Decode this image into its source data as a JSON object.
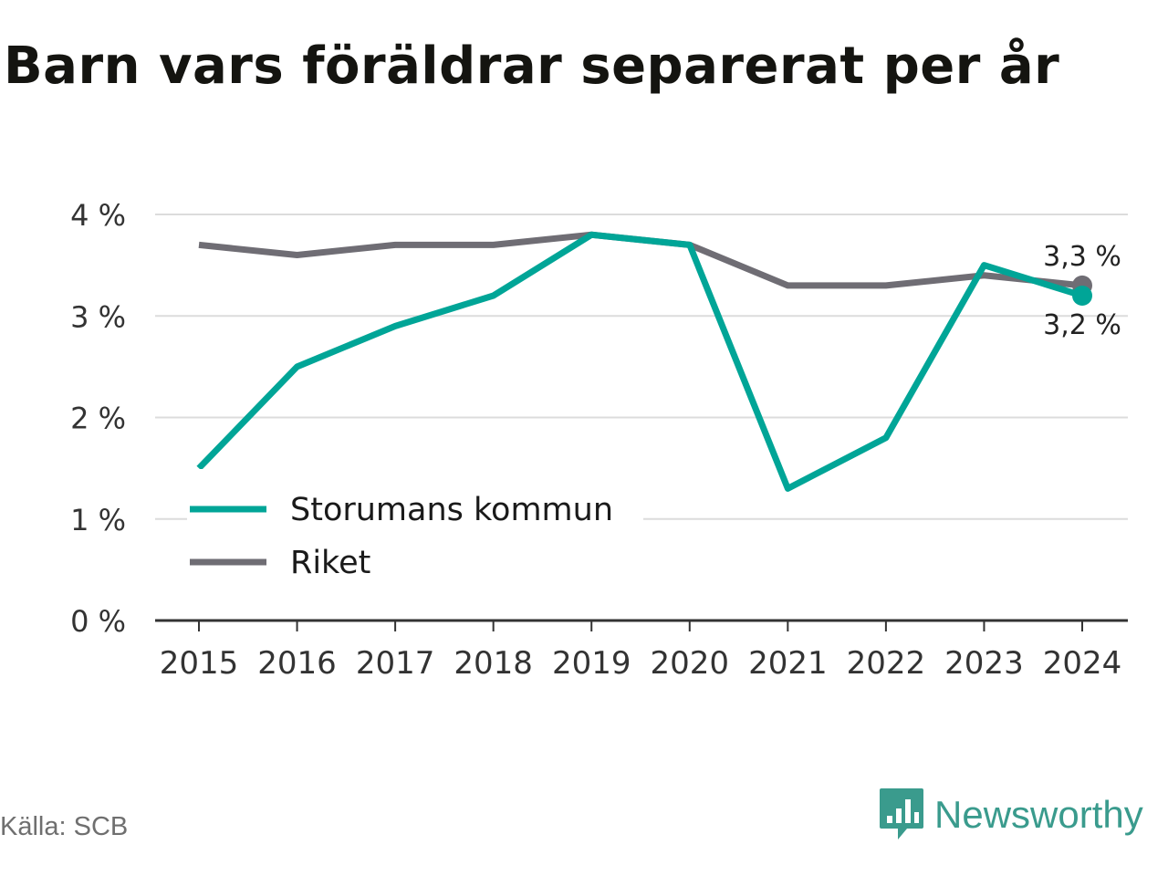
{
  "title": "Barn vars föräldrar separerat per år",
  "source": "Källa: SCB",
  "brand": {
    "name": "Newsworthy",
    "icon": "newsworthy-logo-icon"
  },
  "colors": {
    "kommun": "#00a597",
    "riket": "#6f6d74",
    "grid": "#dcdcdc",
    "axis": "#333333",
    "brand": "#3a9b8d"
  },
  "chart_data": {
    "type": "line",
    "title": "Barn vars föräldrar separerat per år",
    "xlabel": "",
    "ylabel": "",
    "x": [
      "2015",
      "2016",
      "2017",
      "2018",
      "2019",
      "2020",
      "2021",
      "2022",
      "2023",
      "2024"
    ],
    "ylim": [
      0,
      4
    ],
    "yticks": [
      0,
      1,
      2,
      3,
      4
    ],
    "ytick_labels": [
      "0 %",
      "1 %",
      "2 %",
      "3 %",
      "4 %"
    ],
    "grid": true,
    "legend_position": "bottom-left",
    "series": [
      {
        "name": "Storumans kommun",
        "color": "#00a597",
        "values": [
          1.5,
          2.5,
          2.9,
          3.2,
          3.8,
          3.7,
          1.3,
          1.8,
          3.5,
          3.2
        ],
        "end_label": "3,2 %"
      },
      {
        "name": "Riket",
        "color": "#6f6d74",
        "values": [
          3.7,
          3.6,
          3.7,
          3.7,
          3.8,
          3.7,
          3.3,
          3.3,
          3.4,
          3.3
        ],
        "end_label": "3,3 %"
      }
    ]
  }
}
